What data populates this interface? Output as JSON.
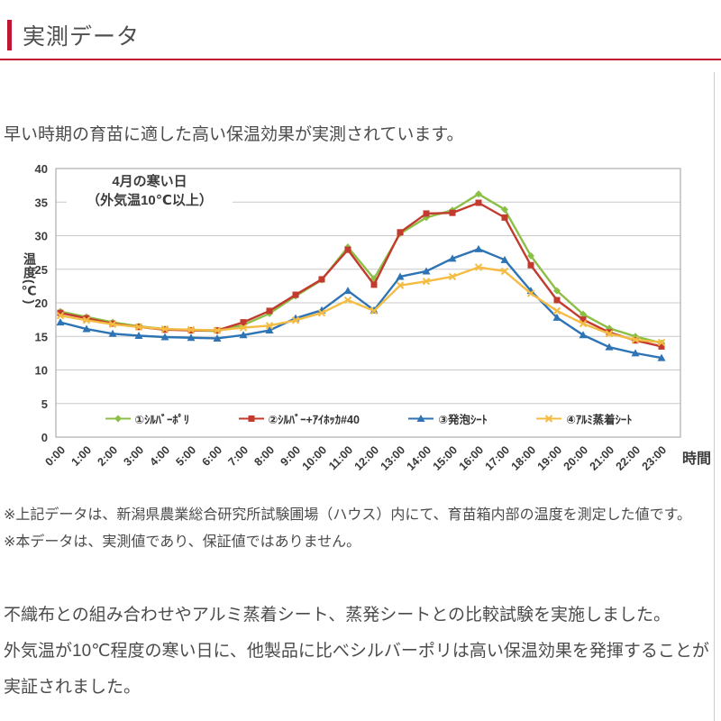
{
  "colors": {
    "accent_red": "#bf1733",
    "text": "#4b4b4b",
    "grid": "#c9c9c9",
    "plot_border": "#aeaeae"
  },
  "header": {
    "title": "実測データ"
  },
  "intro": "早い時期の育苗に適した高い保温効果が実測されています。",
  "chart_data": {
    "type": "line",
    "title": "4月の寒い日",
    "subtitle": "（外気温10℃以上）",
    "xlabel": "時間",
    "ylabel": "温度(℃)",
    "ylim": [
      0,
      40
    ],
    "ytick_step": 5,
    "grid": true,
    "legend_position": "bottom-inside",
    "categories": [
      "0:00",
      "1:00",
      "2:00",
      "3:00",
      "4:00",
      "5:00",
      "6:00",
      "7:00",
      "8:00",
      "9:00",
      "10:00",
      "11:00",
      "12:00",
      "13:00",
      "14:00",
      "15:00",
      "16:00",
      "17:00",
      "18:00",
      "19:00",
      "20:00",
      "21:00",
      "22:00",
      "23:00"
    ],
    "series": [
      {
        "name": "①ｼﾙﾊﾞｰﾎﾟﾘ",
        "color": "#8cbf45",
        "marker": "diamond",
        "values": [
          18.7,
          17.9,
          17.1,
          16.5,
          16.1,
          15.9,
          15.8,
          16.7,
          18.4,
          21.0,
          23.4,
          28.3,
          23.6,
          30.3,
          32.7,
          33.8,
          36.2,
          33.9,
          27.0,
          21.8,
          18.3,
          16.2,
          15.0,
          14.0
        ]
      },
      {
        "name": "②ｼﾙﾊﾞｰ+ｱｲﾎｯｶ#40",
        "color": "#c23b2e",
        "marker": "square",
        "values": [
          18.5,
          17.7,
          16.9,
          16.4,
          16.0,
          15.9,
          15.9,
          17.1,
          18.8,
          21.2,
          23.5,
          27.9,
          22.7,
          30.5,
          33.3,
          33.4,
          34.9,
          32.7,
          25.6,
          20.4,
          17.5,
          15.6,
          14.4,
          13.5
        ]
      },
      {
        "name": "③発泡ｼｰﾄ",
        "color": "#2e74b5",
        "marker": "triangle",
        "values": [
          17.1,
          16.1,
          15.4,
          15.1,
          14.9,
          14.8,
          14.7,
          15.2,
          15.9,
          17.7,
          18.9,
          21.8,
          18.9,
          23.9,
          24.7,
          26.6,
          28.0,
          26.4,
          21.8,
          17.8,
          15.2,
          13.4,
          12.5,
          11.8
        ]
      },
      {
        "name": "④ｱﾙﾐ蒸着ｼｰﾄ",
        "color": "#f4bc42",
        "marker": "x",
        "values": [
          18.1,
          17.4,
          16.8,
          16.4,
          16.1,
          16.0,
          15.9,
          16.3,
          16.6,
          17.4,
          18.5,
          20.4,
          18.8,
          22.6,
          23.2,
          23.9,
          25.3,
          24.7,
          21.4,
          18.8,
          16.9,
          15.4,
          14.5,
          14.1
        ]
      }
    ]
  },
  "notes": [
    "※上記データは、新潟県農業総合研究所試験圃場（ハウス）内にて、育苗箱内部の温度を測定した値です。",
    "※本データは、実測値であり、保証値ではありません。"
  ],
  "paragraphs": [
    "不織布との組み合わせやアルミ蒸着シート、蒸発シートとの比較試験を実施しました。",
    "外気温が10℃程度の寒い日に、他製品に比べシルバーポリは高い保温効果を発揮することが実証されました。"
  ]
}
